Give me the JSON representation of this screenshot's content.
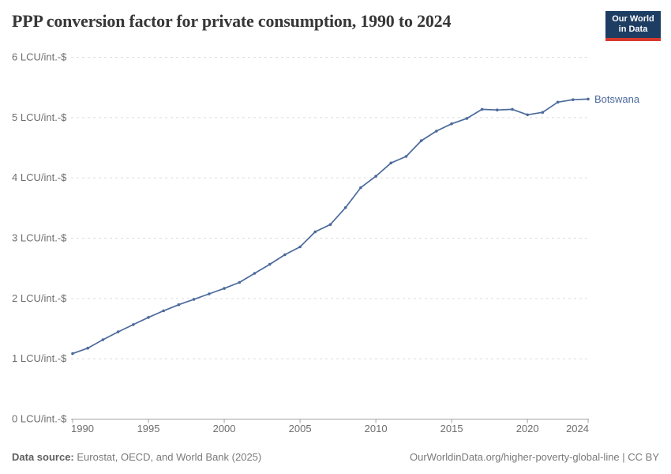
{
  "header": {
    "title": "PPP conversion factor for private consumption, 1990 to 2024",
    "logo": {
      "line1": "Our World",
      "line2": "in Data",
      "bg_color": "#1d3d63",
      "bar_color": "#d7382e"
    }
  },
  "chart_data": {
    "type": "line",
    "title": "PPP conversion factor for private consumption, 1990 to 2024",
    "unit": "LCU/int.-$",
    "xlabel": "",
    "ylabel": "LCU/int.-$",
    "ylim": [
      0,
      6
    ],
    "yticks": [
      0,
      1,
      2,
      3,
      4,
      5,
      6
    ],
    "ytick_suffix": " LCU/int.-$",
    "xticks": [
      1990,
      1995,
      2000,
      2005,
      2010,
      2015,
      2020,
      2024
    ],
    "grid": "dashed-horizontal",
    "legend": "series-end-label",
    "x": [
      1990,
      1991,
      1992,
      1993,
      1994,
      1995,
      1996,
      1997,
      1998,
      1999,
      2000,
      2001,
      2002,
      2003,
      2004,
      2005,
      2006,
      2007,
      2008,
      2009,
      2010,
      2011,
      2012,
      2013,
      2014,
      2015,
      2016,
      2017,
      2018,
      2019,
      2020,
      2021,
      2022,
      2023,
      2024
    ],
    "series": [
      {
        "name": "Botswana",
        "color": "#4C6A9C",
        "values": [
          1.08,
          1.17,
          1.31,
          1.44,
          1.56,
          1.68,
          1.79,
          1.89,
          1.98,
          2.07,
          2.16,
          2.26,
          2.41,
          2.56,
          2.72,
          2.85,
          3.1,
          3.22,
          3.5,
          3.83,
          4.02,
          4.24,
          4.35,
          4.61,
          4.77,
          4.89,
          4.98,
          5.13,
          5.12,
          5.13,
          5.04,
          5.08,
          5.25,
          5.29,
          5.3
        ]
      }
    ],
    "colors": {
      "gridline": "#dcdcdc",
      "axis": "#a5a5a5",
      "tick_label": "#6e6e6e"
    }
  },
  "footer": {
    "datasource_label": "Data source:",
    "datasource_text": " Eurostat, OECD, and World Bank (2025)",
    "credit": "OurWorldinData.org/higher-poverty-global-line | CC BY"
  }
}
